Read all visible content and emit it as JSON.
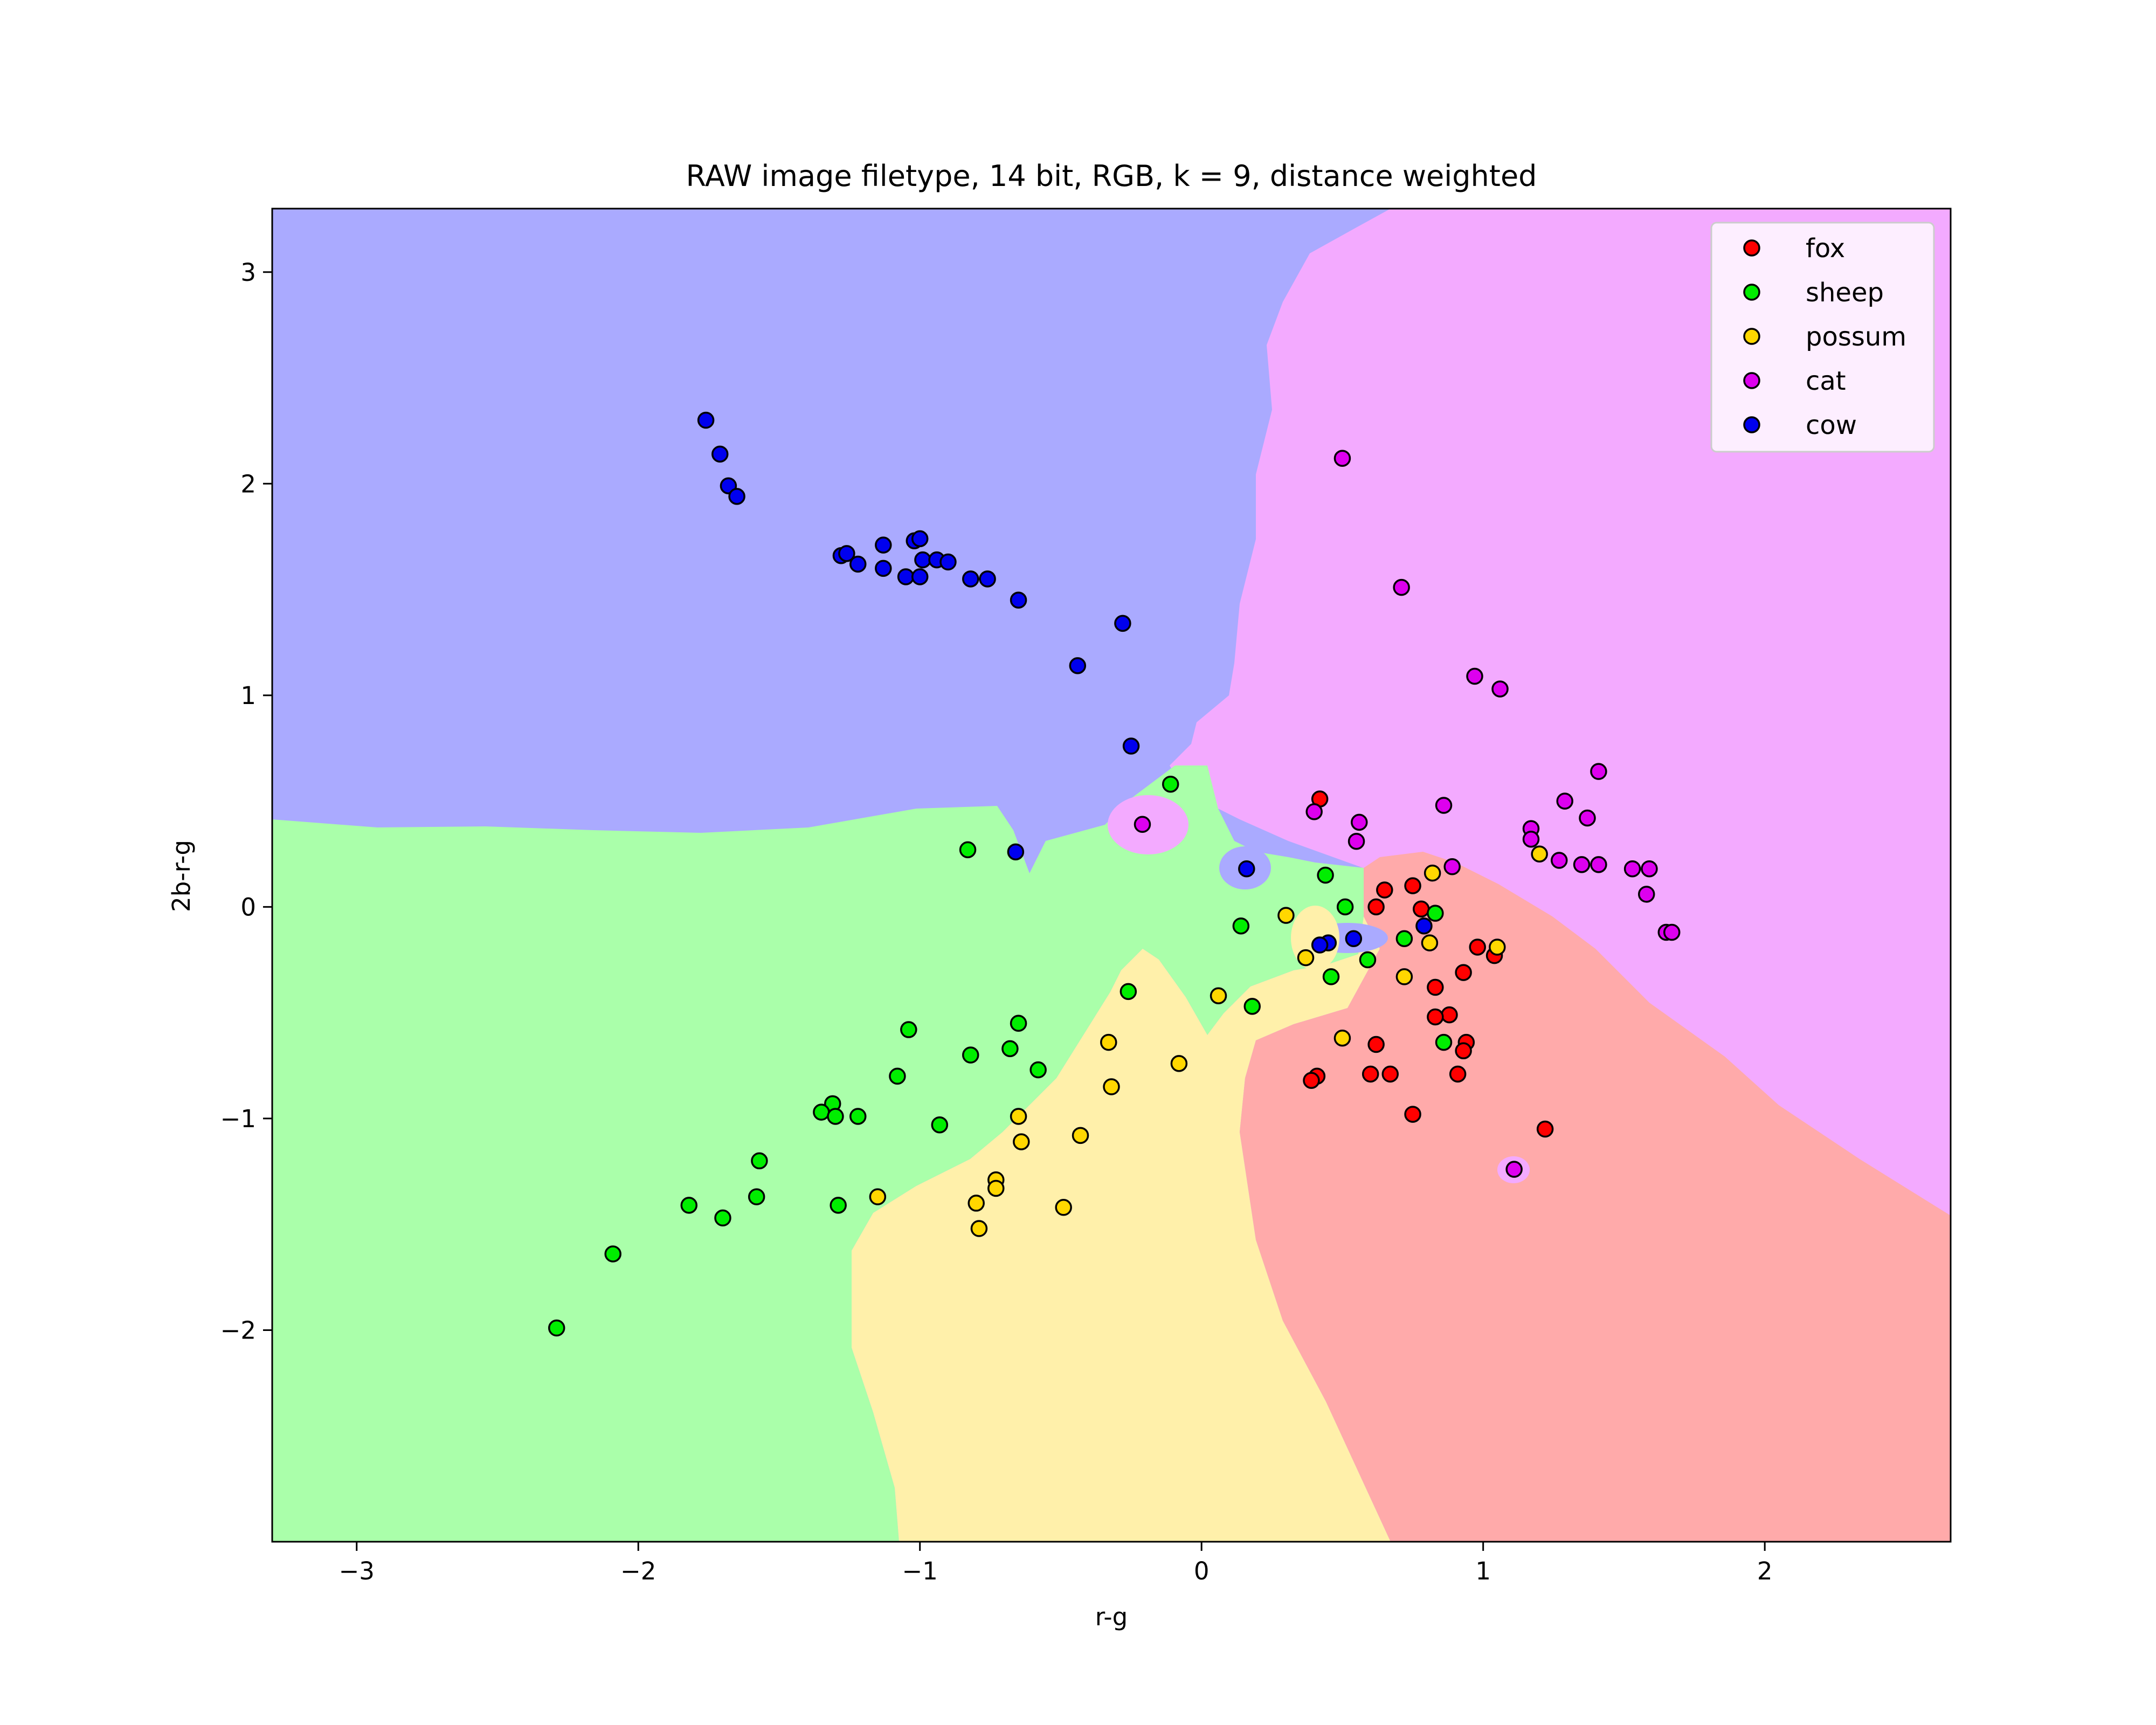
{
  "chart_data": {
    "type": "scatter",
    "title": "RAW image filetype, 14 bit, RGB, k = 9, distance weighted",
    "xlabel": "r-g",
    "ylabel": "2b-r-g",
    "xlim": [
      -3.3,
      2.66
    ],
    "ylim": [
      -3.0,
      3.3
    ],
    "xticks": [
      -3,
      -2,
      -1,
      0,
      1,
      2
    ],
    "yticks": [
      3,
      2,
      1,
      0,
      -1,
      -2
    ],
    "grid": false,
    "legend_position": "top-right",
    "decision_regions": [
      {
        "class": "cow",
        "color": "#aaaaff"
      },
      {
        "class": "cat",
        "color": "#f3aaff"
      },
      {
        "class": "sheep",
        "color": "#aaffaa"
      },
      {
        "class": "possum",
        "color": "#fff0aa"
      },
      {
        "class": "fox",
        "color": "#ffaaaa"
      }
    ],
    "series": [
      {
        "name": "fox",
        "color": "#ff0000",
        "points": [
          [
            0.42,
            0.51
          ],
          [
            0.65,
            0.08
          ],
          [
            0.75,
            0.1
          ],
          [
            0.78,
            -0.01
          ],
          [
            0.62,
            0.0
          ],
          [
            0.98,
            -0.19
          ],
          [
            1.04,
            -0.23
          ],
          [
            0.93,
            -0.31
          ],
          [
            0.83,
            -0.38
          ],
          [
            0.88,
            -0.51
          ],
          [
            0.83,
            -0.52
          ],
          [
            0.94,
            -0.64
          ],
          [
            0.93,
            -0.68
          ],
          [
            0.62,
            -0.65
          ],
          [
            0.6,
            -0.79
          ],
          [
            0.67,
            -0.79
          ],
          [
            0.91,
            -0.79
          ],
          [
            0.41,
            -0.8
          ],
          [
            0.39,
            -0.82
          ],
          [
            0.75,
            -0.98
          ],
          [
            1.22,
            -1.05
          ]
        ]
      },
      {
        "name": "sheep",
        "color": "#00ee00",
        "points": [
          [
            -0.11,
            0.58
          ],
          [
            -0.83,
            0.27
          ],
          [
            0.44,
            0.15
          ],
          [
            0.51,
            0.0
          ],
          [
            0.83,
            -0.03
          ],
          [
            0.14,
            -0.09
          ],
          [
            0.72,
            -0.15
          ],
          [
            0.59,
            -0.25
          ],
          [
            0.46,
            -0.33
          ],
          [
            -0.26,
            -0.4
          ],
          [
            0.18,
            -0.47
          ],
          [
            0.86,
            -0.64
          ],
          [
            -1.04,
            -0.58
          ],
          [
            -0.65,
            -0.55
          ],
          [
            -0.68,
            -0.67
          ],
          [
            -0.82,
            -0.7
          ],
          [
            -0.58,
            -0.77
          ],
          [
            -1.08,
            -0.8
          ],
          [
            -1.31,
            -0.93
          ],
          [
            -1.35,
            -0.97
          ],
          [
            -1.3,
            -0.99
          ],
          [
            -1.22,
            -0.99
          ],
          [
            -0.93,
            -1.03
          ],
          [
            -1.57,
            -1.2
          ],
          [
            -1.58,
            -1.37
          ],
          [
            -1.29,
            -1.41
          ],
          [
            -1.82,
            -1.41
          ],
          [
            -1.7,
            -1.47
          ],
          [
            -2.09,
            -1.64
          ],
          [
            -2.29,
            -1.99
          ]
        ]
      },
      {
        "name": "possum",
        "color": "#ffd700",
        "points": [
          [
            1.2,
            0.25
          ],
          [
            0.82,
            0.16
          ],
          [
            0.3,
            -0.04
          ],
          [
            0.37,
            -0.24
          ],
          [
            0.81,
            -0.17
          ],
          [
            1.05,
            -0.19
          ],
          [
            0.72,
            -0.33
          ],
          [
            0.06,
            -0.42
          ],
          [
            0.5,
            -0.62
          ],
          [
            -0.33,
            -0.64
          ],
          [
            -0.08,
            -0.74
          ],
          [
            -0.32,
            -0.85
          ],
          [
            -0.65,
            -0.99
          ],
          [
            -0.43,
            -1.08
          ],
          [
            -0.64,
            -1.11
          ],
          [
            -0.73,
            -1.29
          ],
          [
            -0.73,
            -1.33
          ],
          [
            -1.15,
            -1.37
          ],
          [
            -0.8,
            -1.4
          ],
          [
            -0.49,
            -1.42
          ],
          [
            -0.79,
            -1.52
          ]
        ]
      },
      {
        "name": "cat",
        "color": "#dd00ee",
        "points": [
          [
            0.5,
            2.12
          ],
          [
            0.71,
            1.51
          ],
          [
            0.97,
            1.09
          ],
          [
            1.06,
            1.03
          ],
          [
            1.41,
            0.64
          ],
          [
            1.29,
            0.5
          ],
          [
            0.86,
            0.48
          ],
          [
            0.4,
            0.45
          ],
          [
            1.37,
            0.42
          ],
          [
            0.56,
            0.4
          ],
          [
            -0.21,
            0.39
          ],
          [
            1.17,
            0.37
          ],
          [
            1.17,
            0.32
          ],
          [
            0.55,
            0.31
          ],
          [
            1.27,
            0.22
          ],
          [
            1.35,
            0.2
          ],
          [
            1.41,
            0.2
          ],
          [
            0.89,
            0.19
          ],
          [
            1.53,
            0.18
          ],
          [
            1.59,
            0.18
          ],
          [
            1.58,
            0.06
          ],
          [
            1.65,
            -0.12
          ],
          [
            1.67,
            -0.12
          ],
          [
            1.11,
            -1.24
          ]
        ]
      },
      {
        "name": "cow",
        "color": "#0000ee",
        "points": [
          [
            -1.76,
            2.3
          ],
          [
            -1.71,
            2.14
          ],
          [
            -1.68,
            1.99
          ],
          [
            -1.65,
            1.94
          ],
          [
            -1.28,
            1.66
          ],
          [
            -1.26,
            1.67
          ],
          [
            -1.22,
            1.62
          ],
          [
            -1.13,
            1.71
          ],
          [
            -1.02,
            1.73
          ],
          [
            -1.0,
            1.74
          ],
          [
            -0.99,
            1.64
          ],
          [
            -0.94,
            1.64
          ],
          [
            -0.9,
            1.63
          ],
          [
            -1.05,
            1.56
          ],
          [
            -1.0,
            1.56
          ],
          [
            -1.13,
            1.6
          ],
          [
            -0.82,
            1.55
          ],
          [
            -0.76,
            1.55
          ],
          [
            -0.65,
            1.45
          ],
          [
            -0.28,
            1.34
          ],
          [
            -0.44,
            1.14
          ],
          [
            -0.25,
            0.76
          ],
          [
            -0.66,
            0.26
          ],
          [
            0.16,
            0.18
          ],
          [
            0.79,
            -0.09
          ],
          [
            0.54,
            -0.15
          ],
          [
            0.45,
            -0.17
          ],
          [
            0.42,
            -0.18
          ]
        ]
      }
    ]
  }
}
